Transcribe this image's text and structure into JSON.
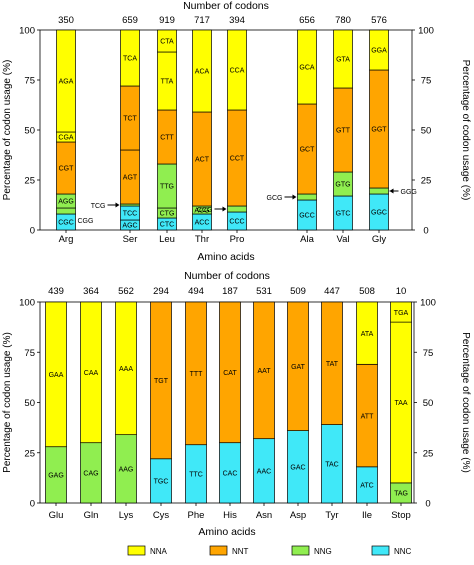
{
  "colors": {
    "NNA": "#ffff00",
    "NNT": "#ffa500",
    "NNG": "#90ee50",
    "NNC": "#40e8f8"
  },
  "legend": [
    {
      "key": "NNA",
      "label": "NNA"
    },
    {
      "key": "NNT",
      "label": "NNT"
    },
    {
      "key": "NNG",
      "label": "NNG"
    },
    {
      "key": "NNC",
      "label": "NNC"
    }
  ],
  "chart_data": [
    {
      "type": "bar",
      "stacked": true,
      "title": "Number of codons",
      "xlabel": "Amino acids",
      "ylabel_left": "Percentage of codon usage (%)",
      "ylabel_right": "Percentage of codon usage (%)",
      "ylim": [
        0,
        100
      ],
      "yticks_left": [
        "0",
        "25",
        "50",
        "75",
        "100"
      ],
      "yticks_right": [
        "100",
        "75",
        "50",
        "25",
        "0"
      ],
      "categories": [
        {
          "name": "Arg",
          "count": "350",
          "segments": [
            {
              "codon": "CGC",
              "group": "NNC",
              "pct": 8
            },
            {
              "codon": "CGG",
              "group": "NNG",
              "pct": 3
            },
            {
              "codon": "AGG",
              "group": "NNG",
              "pct": 7
            },
            {
              "codon": "CGT",
              "group": "NNT",
              "pct": 26
            },
            {
              "codon": "CGA",
              "group": "NNA",
              "pct": 5
            },
            {
              "codon": "AGA",
              "group": "NNA",
              "pct": 51
            }
          ]
        },
        {
          "name": "Ser",
          "count": "659",
          "segments": [
            {
              "codon": "AGC",
              "group": "NNC",
              "pct": 5
            },
            {
              "codon": "TCC",
              "group": "NNC",
              "pct": 7
            },
            {
              "codon": "TCG",
              "group": "NNG",
              "pct": 1
            },
            {
              "codon": "AGT",
              "group": "NNT",
              "pct": 27
            },
            {
              "codon": "TCT",
              "group": "NNT",
              "pct": 32
            },
            {
              "codon": "TCA",
              "group": "NNA",
              "pct": 28
            }
          ]
        },
        {
          "name": "Leu",
          "count": "919",
          "segments": [
            {
              "codon": "CTC",
              "group": "NNC",
              "pct": 6
            },
            {
              "codon": "CTG",
              "group": "NNG",
              "pct": 5
            },
            {
              "codon": "TTG",
              "group": "NNG",
              "pct": 22
            },
            {
              "codon": "CTT",
              "group": "NNT",
              "pct": 27
            },
            {
              "codon": "TTA",
              "group": "NNA",
              "pct": 29
            },
            {
              "codon": "CTA",
              "group": "NNA",
              "pct": 11
            }
          ]
        },
        {
          "name": "Thr",
          "count": "717",
          "segments": [
            {
              "codon": "ACC",
              "group": "NNC",
              "pct": 8
            },
            {
              "codon": "ACG",
              "group": "NNG",
              "pct": 4
            },
            {
              "codon": "ACT",
              "group": "NNT",
              "pct": 47
            },
            {
              "codon": "ACA",
              "group": "NNA",
              "pct": 41
            }
          ]
        },
        {
          "name": "Pro",
          "count": "394",
          "segments": [
            {
              "codon": "CCC",
              "group": "NNC",
              "pct": 9
            },
            {
              "codon": "CCG",
              "group": "NNG",
              "pct": 3
            },
            {
              "codon": "CCT",
              "group": "NNT",
              "pct": 48
            },
            {
              "codon": "CCA",
              "group": "NNA",
              "pct": 40
            }
          ]
        },
        {
          "name": "Ala",
          "count": "656",
          "segments": [
            {
              "codon": "GCC",
              "group": "NNC",
              "pct": 15
            },
            {
              "codon": "GCG",
              "group": "NNG",
              "pct": 3
            },
            {
              "codon": "GCT",
              "group": "NNT",
              "pct": 45
            },
            {
              "codon": "GCA",
              "group": "NNA",
              "pct": 37
            }
          ]
        },
        {
          "name": "Val",
          "count": "780",
          "segments": [
            {
              "codon": "GTC",
              "group": "NNC",
              "pct": 17
            },
            {
              "codon": "GTG",
              "group": "NNG",
              "pct": 12
            },
            {
              "codon": "GTT",
              "group": "NNT",
              "pct": 42
            },
            {
              "codon": "GTA",
              "group": "NNA",
              "pct": 29
            }
          ]
        },
        {
          "name": "Gly",
          "count": "576",
          "segments": [
            {
              "codon": "GGC",
              "group": "NNC",
              "pct": 18
            },
            {
              "codon": "GGG",
              "group": "NNG",
              "pct": 3
            },
            {
              "codon": "GGT",
              "group": "NNT",
              "pct": 59
            },
            {
              "codon": "GGA",
              "group": "NNA",
              "pct": 20
            }
          ]
        }
      ],
      "callouts": [
        {
          "label": "CGG",
          "bar": "Arg",
          "codon": "CGG"
        },
        {
          "label": "TCG",
          "bar": "Ser",
          "codon": "TCG"
        },
        {
          "label": "CCG",
          "bar": "Pro",
          "codon": "CCG"
        },
        {
          "label": "GCG",
          "bar": "Ala",
          "codon": "GCG"
        },
        {
          "label": "GGG",
          "bar": "Gly",
          "codon": "GGG"
        }
      ]
    },
    {
      "type": "bar",
      "stacked": true,
      "title": "Number of codons",
      "xlabel": "Amino acids",
      "ylabel_left": "Percentage of codon usage (%)",
      "ylabel_right": "Percentage of codon usage (%)",
      "ylim": [
        0,
        100
      ],
      "yticks_left": [
        "0",
        "25",
        "50",
        "75",
        "100"
      ],
      "yticks_right": [
        "100",
        "75",
        "50",
        "25",
        "0"
      ],
      "categories": [
        {
          "name": "Glu",
          "count": "439",
          "segments": [
            {
              "codon": "GAG",
              "group": "NNG",
              "pct": 28
            },
            {
              "codon": "GAA",
              "group": "NNA",
              "pct": 72
            }
          ]
        },
        {
          "name": "Gln",
          "count": "364",
          "segments": [
            {
              "codon": "CAG",
              "group": "NNG",
              "pct": 30
            },
            {
              "codon": "CAA",
              "group": "NNA",
              "pct": 70
            }
          ]
        },
        {
          "name": "Lys",
          "count": "562",
          "segments": [
            {
              "codon": "AAG",
              "group": "NNG",
              "pct": 34
            },
            {
              "codon": "AAA",
              "group": "NNA",
              "pct": 66
            }
          ]
        },
        {
          "name": "Cys",
          "count": "294",
          "segments": [
            {
              "codon": "TGC",
              "group": "NNC",
              "pct": 22
            },
            {
              "codon": "TGT",
              "group": "NNT",
              "pct": 78
            }
          ]
        },
        {
          "name": "Phe",
          "count": "494",
          "segments": [
            {
              "codon": "TTC",
              "group": "NNC",
              "pct": 29
            },
            {
              "codon": "TTT",
              "group": "NNT",
              "pct": 71
            }
          ]
        },
        {
          "name": "His",
          "count": "187",
          "segments": [
            {
              "codon": "CAC",
              "group": "NNC",
              "pct": 30
            },
            {
              "codon": "CAT",
              "group": "NNT",
              "pct": 70
            }
          ]
        },
        {
          "name": "Asn",
          "count": "531",
          "segments": [
            {
              "codon": "AAC",
              "group": "NNC",
              "pct": 32
            },
            {
              "codon": "AAT",
              "group": "NNT",
              "pct": 68
            }
          ]
        },
        {
          "name": "Asp",
          "count": "509",
          "segments": [
            {
              "codon": "GAC",
              "group": "NNC",
              "pct": 36
            },
            {
              "codon": "GAT",
              "group": "NNT",
              "pct": 64
            }
          ]
        },
        {
          "name": "Tyr",
          "count": "447",
          "segments": [
            {
              "codon": "TAC",
              "group": "NNC",
              "pct": 39
            },
            {
              "codon": "TAT",
              "group": "NNT",
              "pct": 61
            }
          ]
        },
        {
          "name": "Ile",
          "count": "508",
          "segments": [
            {
              "codon": "ATC",
              "group": "NNC",
              "pct": 18
            },
            {
              "codon": "ATT",
              "group": "NNT",
              "pct": 51
            },
            {
              "codon": "ATA",
              "group": "NNA",
              "pct": 31
            }
          ]
        },
        {
          "name": "Stop",
          "count": "10",
          "segments": [
            {
              "codon": "TAG",
              "group": "NNG",
              "pct": 10
            },
            {
              "codon": "TAA",
              "group": "NNA",
              "pct": 80
            },
            {
              "codon": "TGA",
              "group": "NNA",
              "pct": 10
            }
          ]
        }
      ],
      "callouts": []
    }
  ]
}
